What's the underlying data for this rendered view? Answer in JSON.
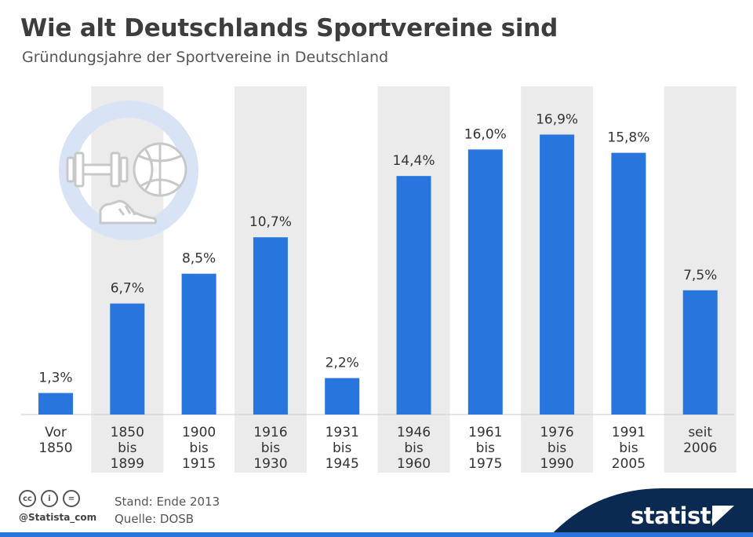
{
  "header": {
    "title": "Wie alt Deutschlands Sportvereine sind",
    "subtitle": "Gründungsjahre der Sportvereine in Deutschland"
  },
  "chart_data": {
    "type": "bar",
    "title": "Wie alt Deutschlands Sportvereine sind",
    "subtitle": "Gründungsjahre der Sportvereine in Deutschland",
    "xlabel": "",
    "ylabel": "",
    "unit": "%",
    "ylim": [
      0,
      20
    ],
    "grid": false,
    "categories": [
      [
        "Vor",
        "1850"
      ],
      [
        "1850",
        "bis",
        "1899"
      ],
      [
        "1900",
        "bis",
        "1915"
      ],
      [
        "1916",
        "bis",
        "1930"
      ],
      [
        "1931",
        "bis",
        "1945"
      ],
      [
        "1946",
        "bis",
        "1960"
      ],
      [
        "1961",
        "bis",
        "1975"
      ],
      [
        "1976",
        "bis",
        "1990"
      ],
      [
        "1991",
        "bis",
        "2005"
      ],
      [
        "seit",
        "2006"
      ]
    ],
    "values": [
      1.3,
      6.7,
      8.5,
      10.7,
      2.2,
      14.4,
      16.0,
      16.9,
      15.8,
      7.5
    ],
    "value_labels": [
      "1,3%",
      "6,7%",
      "8,5%",
      "10,7%",
      "2,2%",
      "14,4%",
      "16,0%",
      "16,9%",
      "15,8%",
      "7,5%"
    ],
    "shaded_columns": [
      1,
      3,
      5,
      7,
      9
    ]
  },
  "colors": {
    "bar": "#2876dd",
    "column_shade": "#ebebeb",
    "brand_band": "#0b2a52",
    "brand_accent": "#2876dd"
  },
  "icons": [
    "dumbbell-icon",
    "basketball-icon",
    "sneaker-icon"
  ],
  "footer": {
    "cc_icons": [
      "cc-icon",
      "by-icon",
      "nd-icon"
    ],
    "cc_labels": [
      "cc",
      "i",
      "="
    ],
    "handle": "@Statista_com",
    "stand": "Stand: Ende 2013",
    "source": "Quelle: DOSB",
    "brand": "statista"
  }
}
